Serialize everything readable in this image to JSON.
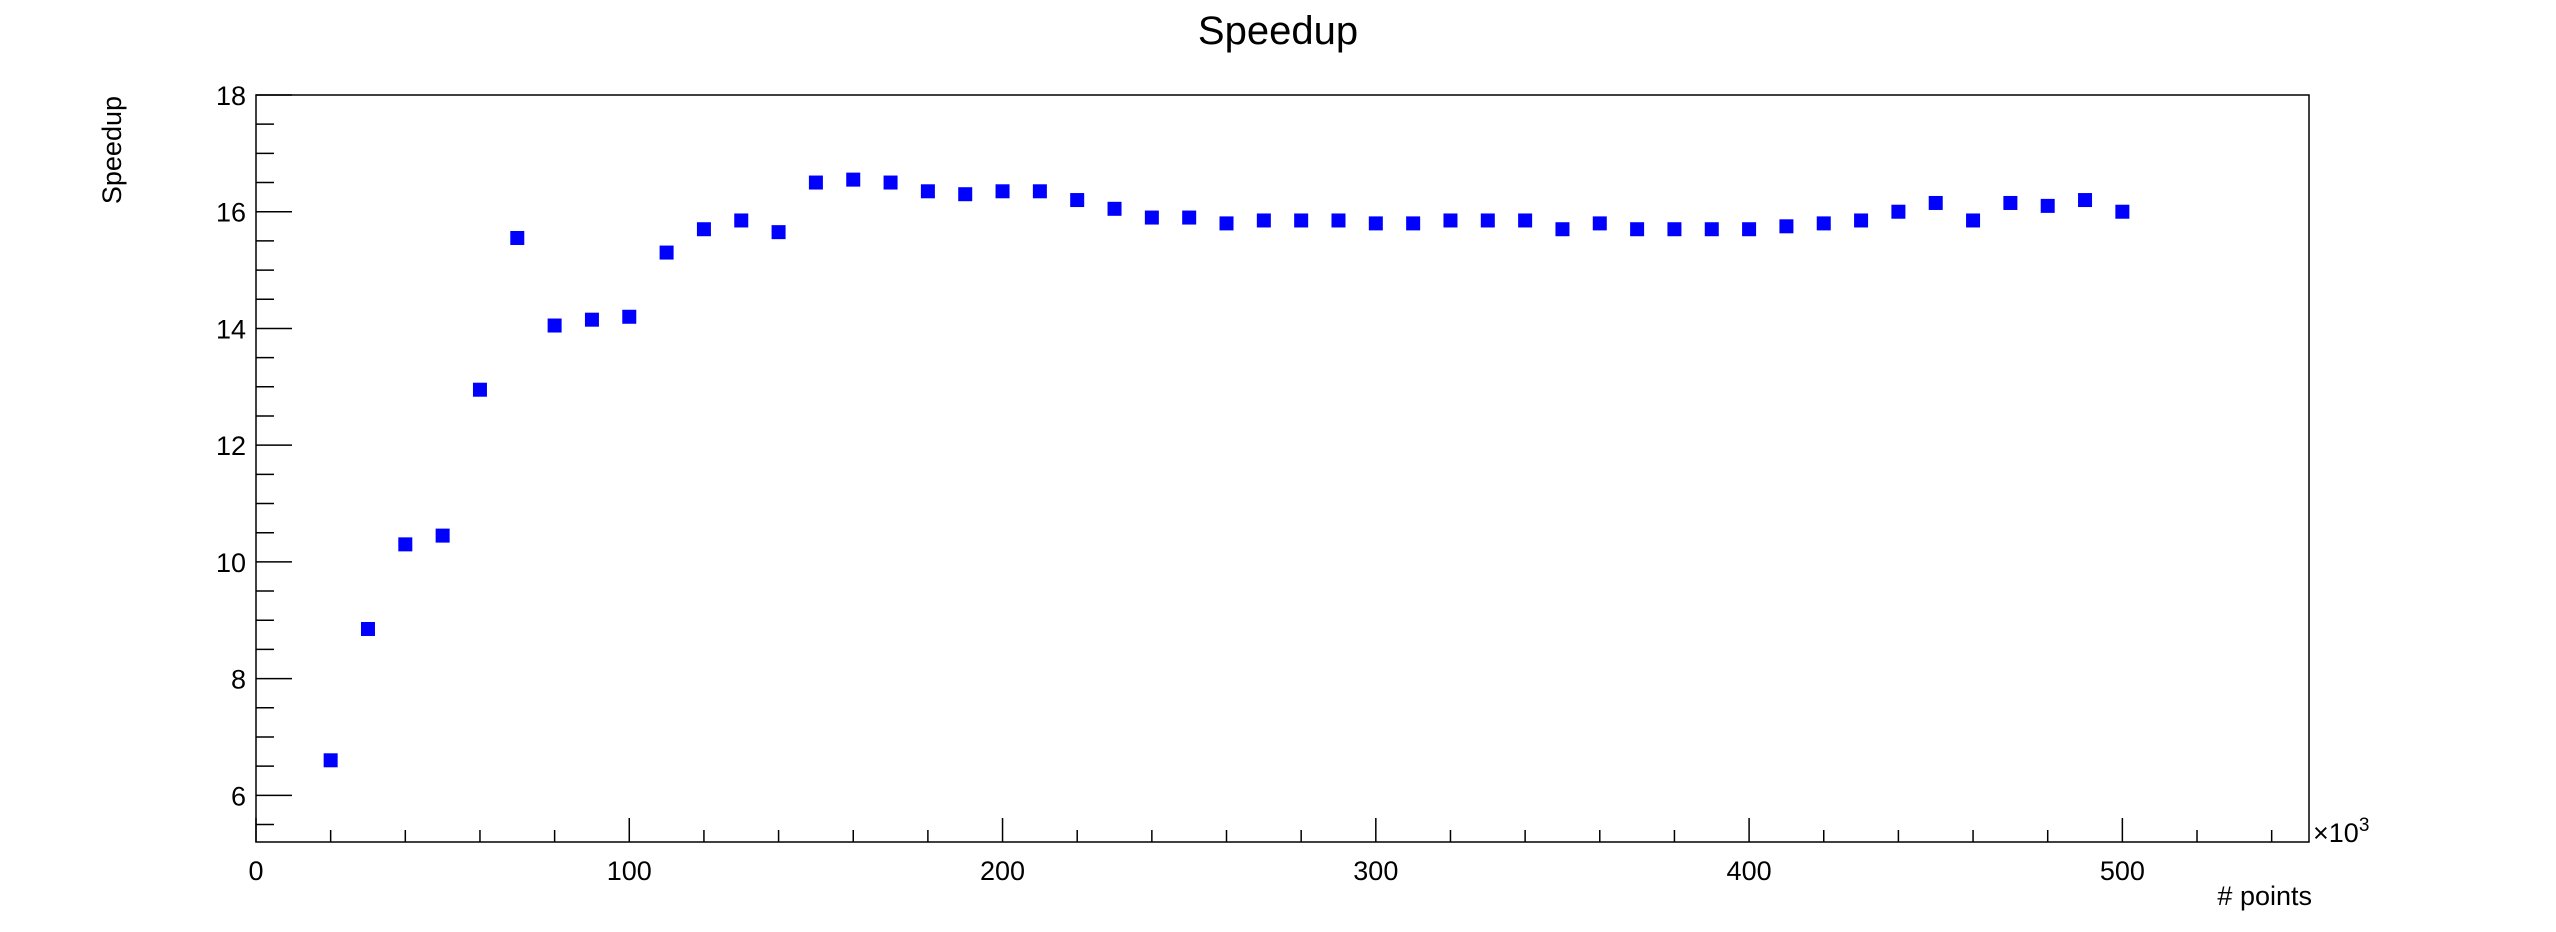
{
  "chart_data": {
    "type": "scatter",
    "title": "Speedup",
    "xlabel": "# points",
    "ylabel": "Speedup",
    "x_multiplier_label": "×10",
    "x_multiplier_exp": "3",
    "xlim": [
      0,
      550
    ],
    "ylim": [
      5.2,
      18
    ],
    "x_ticks": [
      0,
      100,
      200,
      300,
      400,
      500
    ],
    "y_ticks": [
      6,
      8,
      10,
      12,
      14,
      16,
      18
    ],
    "marker_color": "#0000ff",
    "grid": false,
    "legend": "none",
    "series": [
      {
        "x": [
          20,
          30,
          40,
          50,
          60,
          70,
          80,
          90,
          100,
          110,
          120,
          130,
          140,
          150,
          160,
          170,
          180,
          190,
          200,
          210,
          220,
          230,
          240,
          250,
          260,
          270,
          280,
          290,
          300,
          310,
          320,
          330,
          340,
          350,
          360,
          370,
          380,
          390,
          400,
          410,
          420,
          430,
          440,
          450,
          460,
          470,
          480,
          490,
          500
        ],
        "y": [
          6.6,
          8.85,
          10.3,
          10.45,
          12.95,
          15.55,
          14.05,
          14.15,
          14.2,
          15.3,
          15.7,
          15.85,
          15.65,
          16.5,
          16.55,
          16.5,
          16.35,
          16.3,
          16.35,
          16.35,
          16.2,
          16.05,
          15.9,
          15.9,
          15.8,
          15.85,
          15.85,
          15.85,
          15.8,
          15.8,
          15.85,
          15.85,
          15.85,
          15.7,
          15.8,
          15.7,
          15.7,
          15.7,
          15.7,
          15.75,
          15.8,
          15.85,
          16.0,
          16.15,
          15.85,
          16.15,
          16.1,
          16.2,
          16.0
        ]
      }
    ]
  }
}
